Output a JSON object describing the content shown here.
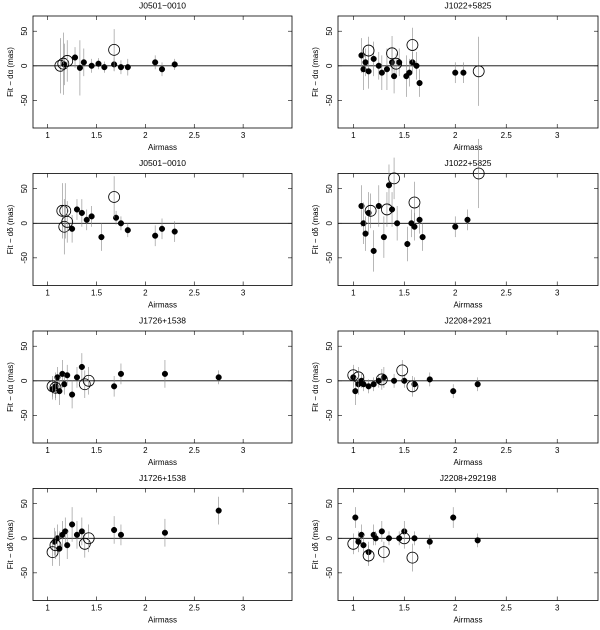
{
  "chart_data": [
    {
      "type": "scatter",
      "title": "J0501−0010",
      "xlabel": "Airmass",
      "ylabel": "Fit − dα (mas)",
      "xlim": [
        0.85,
        3.5
      ],
      "xticks": [
        1,
        1.5,
        2,
        2.5,
        3
      ],
      "ylim": [
        -90,
        72
      ],
      "yticks": [
        -50,
        0,
        50
      ],
      "series": [
        {
          "marker": "filled",
          "color": "#000000",
          "x": [
            1.17,
            1.28,
            1.33,
            1.37,
            1.45,
            1.52,
            1.58,
            1.68,
            1.75,
            1.82,
            2.1,
            2.17,
            2.3
          ],
          "values": [
            2,
            12,
            -3,
            5,
            0,
            3,
            -2,
            2,
            -2,
            -2,
            5,
            -5,
            2
          ],
          "errors": [
            30,
            15,
            40,
            20,
            10,
            8,
            8,
            10,
            10,
            12,
            10,
            10,
            8
          ]
        },
        {
          "marker": "open",
          "color": "#000000",
          "x": [
            1.13,
            1.16,
            1.2,
            1.68
          ],
          "values": [
            0,
            3,
            7,
            23
          ],
          "errors": [
            40,
            45,
            30,
            30
          ]
        }
      ]
    },
    {
      "type": "scatter",
      "title": "J1022+5825",
      "xlabel": "Airmass",
      "ylabel": "Fit − dα (mas)",
      "xlim": [
        0.85,
        3.4
      ],
      "xticks": [
        1,
        1.5,
        2,
        2.5,
        3
      ],
      "ylim": [
        -90,
        72
      ],
      "yticks": [
        -50,
        0,
        50
      ],
      "series": [
        {
          "marker": "filled",
          "color": "#000000",
          "x": [
            1.08,
            1.1,
            1.12,
            1.15,
            1.2,
            1.25,
            1.28,
            1.33,
            1.38,
            1.4,
            1.45,
            1.52,
            1.55,
            1.58,
            1.62,
            1.65,
            2.0,
            2.08
          ],
          "values": [
            15,
            -5,
            5,
            -8,
            10,
            0,
            -10,
            -5,
            5,
            -15,
            5,
            -15,
            -10,
            5,
            0,
            -25,
            -10,
            -10
          ],
          "errors": [
            25,
            30,
            20,
            25,
            25,
            20,
            25,
            30,
            20,
            25,
            20,
            30,
            20,
            15,
            20,
            20,
            15,
            15
          ]
        },
        {
          "marker": "open",
          "color": "#000000",
          "x": [
            1.15,
            1.38,
            1.42,
            1.58,
            2.23
          ],
          "values": [
            22,
            18,
            3,
            30,
            -8
          ],
          "errors": [
            20,
            25,
            15,
            25,
            50
          ]
        }
      ]
    },
    {
      "type": "scatter",
      "title": "J0501−0010",
      "xlabel": "Airmass",
      "ylabel": "Fit − dδ (mas)",
      "xlim": [
        0.85,
        3.5
      ],
      "xticks": [
        1,
        1.5,
        2,
        2.5,
        3
      ],
      "ylim": [
        -90,
        72
      ],
      "yticks": [
        -50,
        0,
        50
      ],
      "series": [
        {
          "marker": "filled",
          "color": "#000000",
          "x": [
            1.25,
            1.3,
            1.35,
            1.4,
            1.45,
            1.55,
            1.7,
            1.75,
            1.82,
            2.1,
            2.17,
            2.3
          ],
          "values": [
            -8,
            20,
            15,
            5,
            10,
            -20,
            8,
            0,
            -10,
            -18,
            -8,
            -12
          ],
          "errors": [
            20,
            15,
            20,
            15,
            15,
            20,
            10,
            10,
            10,
            15,
            15,
            15
          ]
        },
        {
          "marker": "open",
          "color": "#000000",
          "x": [
            1.15,
            1.18,
            1.17,
            1.2,
            1.68
          ],
          "values": [
            18,
            18,
            -5,
            2,
            38
          ],
          "errors": [
            40,
            40,
            40,
            30,
            30
          ]
        }
      ]
    },
    {
      "type": "scatter",
      "title": "J1022+5825",
      "xlabel": "Airmass",
      "ylabel": "Fit − dδ (mas)",
      "xlim": [
        0.85,
        3.4
      ],
      "xticks": [
        1,
        1.5,
        2,
        2.5,
        3
      ],
      "ylim": [
        -90,
        72
      ],
      "yticks": [
        -50,
        0,
        50
      ],
      "series": [
        {
          "marker": "filled",
          "color": "#000000",
          "x": [
            1.08,
            1.1,
            1.12,
            1.15,
            1.2,
            1.25,
            1.3,
            1.35,
            1.38,
            1.43,
            1.53,
            1.57,
            1.6,
            1.65,
            1.68,
            2.0,
            2.12
          ],
          "values": [
            25,
            0,
            -15,
            15,
            -40,
            25,
            -20,
            55,
            20,
            0,
            -30,
            0,
            -5,
            5,
            -20,
            -5,
            5
          ],
          "errors": [
            30,
            30,
            25,
            30,
            30,
            30,
            30,
            30,
            25,
            25,
            25,
            20,
            20,
            20,
            20,
            15,
            15
          ]
        },
        {
          "marker": "open",
          "color": "#000000",
          "x": [
            1.17,
            1.33,
            1.4,
            1.6,
            2.23
          ],
          "values": [
            18,
            20,
            65,
            30,
            72
          ],
          "errors": [
            25,
            25,
            30,
            30,
            50
          ]
        }
      ]
    },
    {
      "type": "scatter",
      "title": "J1726+1538",
      "xlabel": "Airmass",
      "ylabel": "Fit − dα (mas)",
      "xlim": [
        0.85,
        3.5
      ],
      "xticks": [
        1,
        1.5,
        2,
        2.5,
        3
      ],
      "ylim": [
        -90,
        72
      ],
      "yticks": [
        -50,
        0,
        50
      ],
      "series": [
        {
          "marker": "filled",
          "color": "#000000",
          "x": [
            1.05,
            1.08,
            1.1,
            1.12,
            1.15,
            1.17,
            1.2,
            1.25,
            1.3,
            1.35,
            1.68,
            1.75,
            2.2,
            2.75
          ],
          "values": [
            -12,
            -8,
            5,
            -15,
            10,
            -5,
            8,
            -20,
            5,
            20,
            -8,
            10,
            10,
            5
          ],
          "errors": [
            15,
            20,
            15,
            20,
            20,
            15,
            15,
            20,
            15,
            20,
            15,
            15,
            20,
            10
          ]
        },
        {
          "marker": "open",
          "color": "#000000",
          "x": [
            1.05,
            1.08,
            1.38,
            1.42
          ],
          "values": [
            -8,
            -10,
            -5,
            0
          ],
          "errors": [
            15,
            15,
            20,
            20
          ]
        }
      ]
    },
    {
      "type": "scatter",
      "title": "J2208+2921",
      "xlabel": "Airmass",
      "ylabel": "Fit − dα (mas)",
      "xlim": [
        0.85,
        3.4
      ],
      "xticks": [
        1,
        1.5,
        2,
        2.5,
        3
      ],
      "ylim": [
        -90,
        72
      ],
      "yticks": [
        -50,
        0,
        50
      ],
      "series": [
        {
          "marker": "filled",
          "color": "#000000",
          "x": [
            1.0,
            1.02,
            1.05,
            1.08,
            1.1,
            1.15,
            1.2,
            1.25,
            1.3,
            1.4,
            1.5,
            1.6,
            1.75,
            1.98,
            2.22
          ],
          "values": [
            5,
            -15,
            -5,
            0,
            -5,
            -8,
            -5,
            0,
            5,
            0,
            0,
            -5,
            2,
            -15,
            -5
          ],
          "errors": [
            15,
            20,
            15,
            10,
            10,
            10,
            10,
            10,
            15,
            10,
            10,
            10,
            10,
            10,
            10
          ]
        },
        {
          "marker": "open",
          "color": "#000000",
          "x": [
            1.0,
            1.05,
            1.28,
            1.48,
            1.58
          ],
          "values": [
            8,
            5,
            2,
            15,
            -8
          ],
          "errors": [
            15,
            15,
            15,
            15,
            15
          ]
        }
      ]
    },
    {
      "type": "scatter",
      "title": "J1726+1538",
      "xlabel": "Airmass",
      "ylabel": "Fit − dδ (mas)",
      "xlim": [
        0.85,
        3.5
      ],
      "xticks": [
        1,
        1.5,
        2,
        2.5,
        3
      ],
      "ylim": [
        -90,
        72
      ],
      "yticks": [
        -50,
        0,
        50
      ],
      "series": [
        {
          "marker": "filled",
          "color": "#000000",
          "x": [
            1.07,
            1.1,
            1.12,
            1.15,
            1.18,
            1.2,
            1.25,
            1.3,
            1.35,
            1.68,
            1.75,
            2.2,
            2.75
          ],
          "values": [
            -5,
            0,
            -15,
            5,
            10,
            -10,
            20,
            5,
            10,
            12,
            5,
            8,
            40
          ],
          "errors": [
            20,
            20,
            25,
            20,
            20,
            20,
            25,
            20,
            20,
            20,
            15,
            20,
            20
          ]
        },
        {
          "marker": "open",
          "color": "#000000",
          "x": [
            1.05,
            1.08,
            1.38,
            1.42
          ],
          "values": [
            -20,
            -10,
            -8,
            0
          ],
          "errors": [
            20,
            20,
            20,
            20
          ]
        }
      ]
    },
    {
      "type": "scatter",
      "title": "J2208+292198",
      "xlabel": "Airmass",
      "ylabel": "Fit − dδ (mas)",
      "xlim": [
        0.85,
        3.4
      ],
      "xticks": [
        1,
        1.5,
        2,
        2.5,
        3
      ],
      "ylim": [
        -90,
        72
      ],
      "yticks": [
        -50,
        0,
        50
      ],
      "series": [
        {
          "marker": "filled",
          "color": "#000000",
          "x": [
            1.02,
            1.05,
            1.08,
            1.1,
            1.15,
            1.2,
            1.22,
            1.28,
            1.35,
            1.45,
            1.5,
            1.6,
            1.75,
            1.98,
            2.22
          ],
          "values": [
            30,
            -5,
            5,
            -10,
            -20,
            5,
            0,
            10,
            0,
            0,
            10,
            0,
            -5,
            30,
            -3
          ],
          "errors": [
            15,
            15,
            15,
            15,
            15,
            15,
            10,
            15,
            10,
            10,
            15,
            10,
            10,
            15,
            10
          ]
        },
        {
          "marker": "open",
          "color": "#000000",
          "x": [
            1.0,
            1.15,
            1.3,
            1.5,
            1.58
          ],
          "values": [
            -8,
            -25,
            -20,
            0,
            -28
          ],
          "errors": [
            15,
            15,
            15,
            15,
            20
          ]
        }
      ]
    }
  ]
}
